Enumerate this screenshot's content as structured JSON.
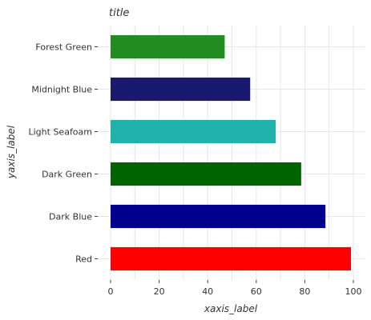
{
  "chart_data": {
    "type": "bar",
    "orientation": "horizontal",
    "title": "title",
    "xlabel": "xaxis_label",
    "ylabel": "yaxis_label",
    "xlim": [
      0,
      100
    ],
    "xticks": [
      0,
      20,
      40,
      60,
      80,
      100
    ],
    "grid": true,
    "categories": [
      "Red",
      "Dark Blue",
      "Dark Green",
      "Light Seafoam",
      "Midnight Blue",
      "Forest Green"
    ],
    "values": [
      99,
      88.5,
      78.5,
      68,
      57.5,
      47
    ],
    "colors": [
      "#ff0000",
      "#00008b",
      "#006400",
      "#20b2aa",
      "#191970",
      "#228b22"
    ]
  }
}
